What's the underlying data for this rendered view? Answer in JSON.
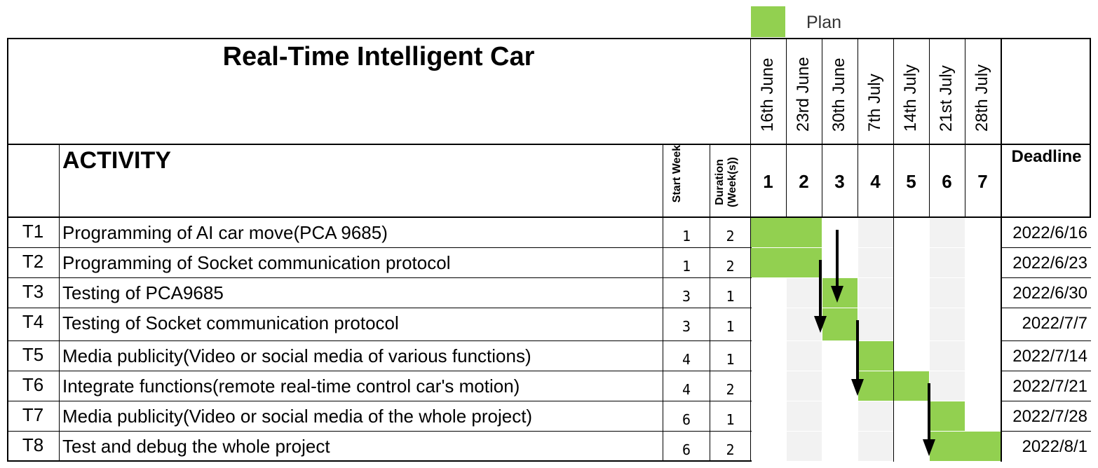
{
  "chart_data": {
    "type": "gantt",
    "title": "Real-Time Intelligent Car",
    "legend": {
      "label": "Plan",
      "color": "#92d050",
      "placement": "top-right"
    },
    "headers": {
      "activity": "ACTIVITY",
      "start": "Start Week",
      "duration": "Duration (Week(s))",
      "deadline": "Deadline"
    },
    "weeks": [
      {
        "num": "1",
        "date": "16th June"
      },
      {
        "num": "2",
        "date": "23rd June"
      },
      {
        "num": "3",
        "date": "30th June"
      },
      {
        "num": "4",
        "date": "7th July"
      },
      {
        "num": "5",
        "date": "14th July"
      },
      {
        "num": "6",
        "date": "21st July"
      },
      {
        "num": "7",
        "date": "28th July"
      }
    ],
    "tasks": [
      {
        "id": "T1",
        "name": "Programming of AI car move(PCA 9685)",
        "start": 1,
        "duration": 2,
        "deadline": "2022/6/16"
      },
      {
        "id": "T2",
        "name": "Programming of Socket communication protocol",
        "start": 1,
        "duration": 2,
        "deadline": "2022/6/23"
      },
      {
        "id": "T3",
        "name": "Testing of PCA9685",
        "start": 3,
        "duration": 1,
        "deadline": "2022/6/30"
      },
      {
        "id": "T4",
        "name": "Testing of Socket communication protocol",
        "start": 3,
        "duration": 1,
        "deadline": "2022/7/7"
      },
      {
        "id": "T5",
        "name": "Media publicity(Video or social media of various functions)",
        "start": 4,
        "duration": 1,
        "deadline": "2022/7/14"
      },
      {
        "id": "T6",
        "name": "Integrate functions(remote real-time control car's motion)",
        "start": 4,
        "duration": 2,
        "deadline": "2022/7/21"
      },
      {
        "id": "T7",
        "name": "Media publicity(Video or social media of the whole project)",
        "start": 6,
        "duration": 1,
        "deadline": "2022/7/28"
      },
      {
        "id": "T8",
        "name": "Test and debug the whole project",
        "start": 6,
        "duration": 2,
        "deadline": "2022/8/1"
      }
    ],
    "dependencies": [
      {
        "from": "T1",
        "to": "T3"
      },
      {
        "from": "T2",
        "to": "T4"
      },
      {
        "from": "T4",
        "to": "T6"
      },
      {
        "from": "T6",
        "to": "T8"
      }
    ]
  }
}
